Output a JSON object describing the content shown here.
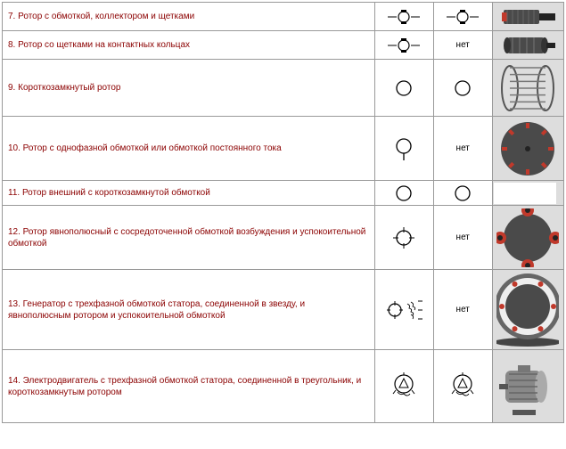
{
  "colors": {
    "text": "#8b0000",
    "border": "#999999",
    "no_text": "#000000",
    "img_bg": "#dddddd",
    "rotor_red": "#c0392b",
    "rotor_dark": "#4a4a4a",
    "motor_gray": "#888888",
    "copper": "#b08050"
  },
  "layout": {
    "col_desc_w": 380,
    "col_sym_w": 60,
    "col_img_w": 73
  },
  "no_label": "нет",
  "rows": [
    {
      "num": "7",
      "text": "7. Ротор с обмоткой, коллектором и щетками",
      "height": 32,
      "sym1": "rotor-brush",
      "sym2": "rotor-brush",
      "img": "commutator-rotor"
    },
    {
      "num": "8",
      "text": "8. Ротор со щетками на контактных кольцах",
      "height": 32,
      "sym1": "rotor-brush",
      "sym2": "no",
      "img": "slip-ring-rotor"
    },
    {
      "num": "9",
      "text": "9. Короткозамкнутый ротор",
      "height": 64,
      "sym1": "circle",
      "sym2": "circle",
      "img": "squirrel-cage"
    },
    {
      "num": "10",
      "text": "10. Ротор с однофазной обмоткой или обмоткой постоянного тока",
      "height": 72,
      "sym1": "circle-line",
      "sym2": "no",
      "img": "disc-rotor"
    },
    {
      "num": "11",
      "text": "11. Ротор внешний с короткозамкнутой обмоткой",
      "height": 28,
      "sym1": "circle",
      "sym2": "circle",
      "img": "blank"
    },
    {
      "num": "12",
      "text": "12. Ротор явнополюсный с сосредоточенной обмоткой возбуждения и успокоительной обмоткой",
      "height": 72,
      "sym1": "circle-cross",
      "sym2": "no",
      "img": "salient-pole"
    },
    {
      "num": "13",
      "text": "13. Генератор с трехфазной обмоткой статора, соединенной в звезду, и явнополюсным ротором и успокоительной обмоткой",
      "height": 90,
      "sym1": "circle-star",
      "sym2": "no",
      "img": "generator"
    },
    {
      "num": "14",
      "text": "14. Электродвигатель с трехфазной обмоткой статора, соединенной в треугольник, и короткозамкнутым ротором",
      "height": 82,
      "sym1": "triangle",
      "sym2": "triangle",
      "img": "motor"
    }
  ]
}
